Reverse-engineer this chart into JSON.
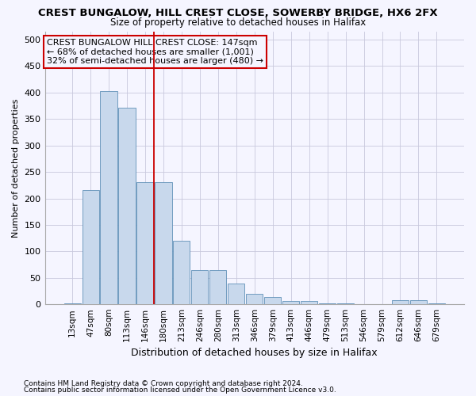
{
  "title": "CREST BUNGALOW, HILL CREST CLOSE, SOWERBY BRIDGE, HX6 2FX",
  "subtitle": "Size of property relative to detached houses in Halifax",
  "xlabel": "Distribution of detached houses by size in Halifax",
  "ylabel": "Number of detached properties",
  "footer1": "Contains HM Land Registry data © Crown copyright and database right 2024.",
  "footer2": "Contains public sector information licensed under the Open Government Licence v3.0.",
  "annotation_line1": "CREST BUNGALOW HILL CREST CLOSE: 147sqm",
  "annotation_line2": "← 68% of detached houses are smaller (1,001)",
  "annotation_line3": "32% of semi-detached houses are larger (480) →",
  "bar_labels": [
    "13sqm",
    "47sqm",
    "80sqm",
    "113sqm",
    "146sqm",
    "180sqm",
    "213sqm",
    "246sqm",
    "280sqm",
    "313sqm",
    "346sqm",
    "379sqm",
    "413sqm",
    "446sqm",
    "479sqm",
    "513sqm",
    "546sqm",
    "579sqm",
    "612sqm",
    "646sqm",
    "679sqm"
  ],
  "bar_values": [
    2,
    215,
    403,
    372,
    230,
    230,
    120,
    65,
    65,
    39,
    20,
    14,
    6,
    6,
    2,
    2,
    0,
    0,
    8,
    8,
    2
  ],
  "bar_color": "#c8d8ec",
  "bar_edge_color": "#6090b8",
  "vline_x": 4.5,
  "vline_color": "#cc0000",
  "ylim": [
    0,
    515
  ],
  "yticks": [
    0,
    50,
    100,
    150,
    200,
    250,
    300,
    350,
    400,
    450,
    500
  ],
  "annotation_box_color": "#cc0000",
  "bg_color": "#f5f5ff",
  "grid_color": "#c8c8dd",
  "title_fontsize": 9.5,
  "subtitle_fontsize": 8.5,
  "xlabel_fontsize": 9,
  "ylabel_fontsize": 8,
  "tick_fontsize": 8,
  "xtick_fontsize": 7.5,
  "footer_fontsize": 6.5,
  "ann_fontsize": 8
}
